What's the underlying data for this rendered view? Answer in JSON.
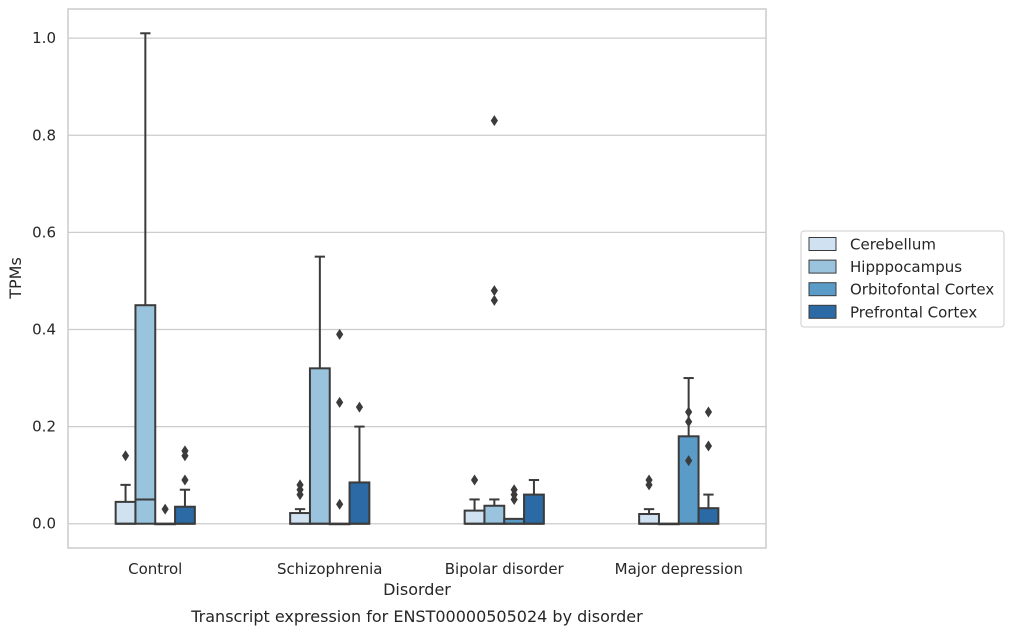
{
  "caption": "Transcript expression for ENST00000505024 by disorder",
  "chart_data": {
    "type": "box",
    "xlabel": "Disorder",
    "ylabel": "TPMs",
    "ylim": [
      -0.05,
      1.06
    ],
    "yticks": [
      0.0,
      0.2,
      0.4,
      0.6,
      0.8,
      1.0
    ],
    "ytick_labels": [
      "0.0",
      "0.2",
      "0.4",
      "0.6",
      "0.8",
      "1.0"
    ],
    "grid": "horizontal",
    "legend_position": "right",
    "categories": [
      "Control",
      "Schizophrenia",
      "Bipolar disorder",
      "Major depression"
    ],
    "series": [
      {
        "name": "Cerebellum",
        "color": "#d0e2f1",
        "boxes": [
          {
            "q1": 0.0,
            "median": 0.0,
            "q3": 0.045,
            "whisker_low": 0.0,
            "whisker_high": 0.08,
            "outliers": [
              0.14
            ]
          },
          {
            "q1": 0.0,
            "median": 0.0,
            "q3": 0.022,
            "whisker_low": 0.0,
            "whisker_high": 0.03,
            "outliers": [
              0.06,
              0.07,
              0.08
            ]
          },
          {
            "q1": 0.0,
            "median": 0.0,
            "q3": 0.027,
            "whisker_low": 0.0,
            "whisker_high": 0.05,
            "outliers": [
              0.09
            ]
          },
          {
            "q1": 0.0,
            "median": 0.0,
            "q3": 0.02,
            "whisker_low": 0.0,
            "whisker_high": 0.03,
            "outliers": [
              0.08,
              0.09
            ]
          }
        ]
      },
      {
        "name": "Hipppocampus",
        "color": "#9ac3dd",
        "boxes": [
          {
            "q1": 0.0,
            "median": 0.05,
            "q3": 0.45,
            "whisker_low": 0.0,
            "whisker_high": 1.01,
            "outliers": []
          },
          {
            "q1": 0.0,
            "median": 0.0,
            "q3": 0.32,
            "whisker_low": 0.0,
            "whisker_high": 0.55,
            "outliers": []
          },
          {
            "q1": 0.0,
            "median": 0.0,
            "q3": 0.037,
            "whisker_low": 0.0,
            "whisker_high": 0.05,
            "outliers": [
              0.46,
              0.48,
              0.83
            ]
          },
          {
            "q1": 0.0,
            "median": 0.0,
            "q3": 0.0,
            "whisker_low": 0.0,
            "whisker_high": 0.0,
            "outliers": []
          }
        ]
      },
      {
        "name": "Orbitofontal Cortex",
        "color": "#5a9cc7",
        "boxes": [
          {
            "q1": 0.0,
            "median": 0.0,
            "q3": 0.0,
            "whisker_low": 0.0,
            "whisker_high": 0.0,
            "outliers": [
              0.03
            ]
          },
          {
            "q1": 0.0,
            "median": 0.0,
            "q3": 0.0,
            "whisker_low": 0.0,
            "whisker_high": 0.0,
            "outliers": [
              0.04,
              0.25,
              0.39
            ]
          },
          {
            "q1": 0.0,
            "median": 0.0,
            "q3": 0.01,
            "whisker_low": 0.0,
            "whisker_high": 0.01,
            "outliers": [
              0.05,
              0.06,
              0.07
            ]
          },
          {
            "q1": 0.0,
            "median": 0.0,
            "q3": 0.18,
            "whisker_low": 0.0,
            "whisker_high": 0.3,
            "outliers": [
              0.13,
              0.21,
              0.23
            ]
          }
        ]
      },
      {
        "name": "Prefrontal Cortex",
        "color": "#2b6aa4",
        "boxes": [
          {
            "q1": 0.0,
            "median": 0.0,
            "q3": 0.035,
            "whisker_low": 0.0,
            "whisker_high": 0.07,
            "outliers": [
              0.09,
              0.14,
              0.15
            ]
          },
          {
            "q1": 0.0,
            "median": 0.0,
            "q3": 0.085,
            "whisker_low": 0.0,
            "whisker_high": 0.2,
            "outliers": [
              0.24
            ]
          },
          {
            "q1": 0.0,
            "median": 0.0,
            "q3": 0.06,
            "whisker_low": 0.0,
            "whisker_high": 0.09,
            "outliers": []
          },
          {
            "q1": 0.0,
            "median": 0.0,
            "q3": 0.032,
            "whisker_low": 0.0,
            "whisker_high": 0.06,
            "outliers": [
              0.16,
              0.23
            ]
          }
        ]
      }
    ]
  }
}
